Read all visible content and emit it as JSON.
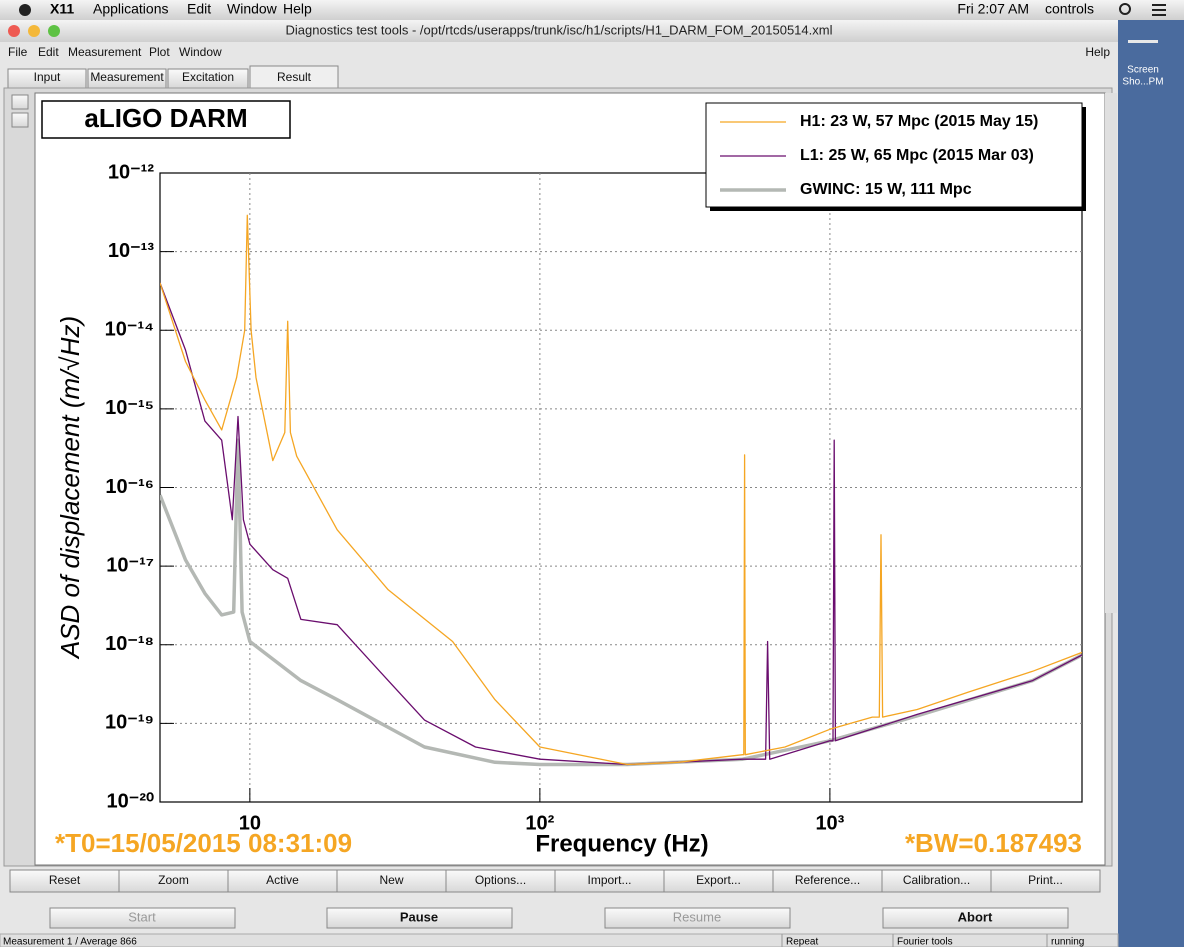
{
  "menubar": {
    "app": "X11",
    "menus": [
      "Applications",
      "Edit",
      "Window",
      "Help"
    ],
    "clock": "Fri 2:07 AM",
    "user": "controls"
  },
  "window": {
    "title": "Diagnostics test tools - /opt/rtcds/userapps/trunk/isc/h1/scripts/H1_DARM_FOM_20150514.xml",
    "menus": [
      "File",
      "Edit",
      "Measurement",
      "Plot",
      "Window"
    ],
    "help": "Help",
    "tabs": [
      "Input",
      "Measurement",
      "Excitation",
      "Result"
    ],
    "buttons": [
      "Reset",
      "Zoom",
      "Active",
      "New",
      "Options...",
      "Import...",
      "Export...",
      "Reference...",
      "Calibration...",
      "Print..."
    ],
    "controls": [
      "Start",
      "Pause",
      "Resume",
      "Abort"
    ],
    "status": [
      "Measurement 1 / Average 866",
      "Repeat",
      "Fourier tools",
      "running"
    ]
  },
  "desktop": {
    "icon_label": [
      "Screen",
      "Sho...PM"
    ]
  },
  "chart_data": {
    "type": "line",
    "title": "aLIGO DARM",
    "xlabel": "Frequency (Hz)",
    "ylabel": "ASD of displacement  (m/√Hz)",
    "annotations": [
      "*T0=15/05/2015 08:31:09",
      "*BW=0.187493"
    ],
    "xscale": "log",
    "yscale": "log",
    "grid": true,
    "legend": "upper right",
    "xlim": [
      4.9,
      7400
    ],
    "ylim": [
      1e-20,
      1e-12
    ],
    "xticks": [
      10,
      {
        "value": 100,
        "label": "10²"
      },
      {
        "value": 1000,
        "label": "10³"
      }
    ],
    "yticks": [
      {
        "value": 1e-20,
        "label": "10⁻²⁰"
      },
      {
        "value": 1e-19,
        "label": "10⁻¹⁹"
      },
      {
        "value": 1e-18,
        "label": "10⁻¹⁸"
      },
      {
        "value": 1e-17,
        "label": "10⁻¹⁷"
      },
      {
        "value": 1e-16,
        "label": "10⁻¹⁶"
      },
      {
        "value": 1e-15,
        "label": "10⁻¹⁵"
      },
      {
        "value": 1e-14,
        "label": "10⁻¹⁴"
      },
      {
        "value": 1e-13,
        "label": "10⁻¹³"
      },
      {
        "value": 1e-12,
        "label": "10⁻¹²"
      }
    ],
    "series": [
      {
        "name": "H1: 23 W, 57 Mpc (2015 May 15)",
        "color": "#f5a623",
        "linewidth": 1.3,
        "x": [
          4.9,
          6,
          7,
          8,
          9,
          9.6,
          9.8,
          10.1,
          10.5,
          12,
          13.2,
          13.5,
          13.8,
          14.5,
          20,
          30,
          50,
          70,
          100,
          200,
          300,
          500,
          505,
          508,
          511,
          700,
          1000,
          1400,
          1480,
          1500,
          1520,
          2000,
          3000,
          5000,
          7400
        ],
        "values": [
          4e-14,
          4e-15,
          1.3e-15,
          5.4e-16,
          2.5e-15,
          1e-14,
          2.9e-13,
          1e-14,
          2.5e-15,
          2.2e-16,
          5e-16,
          1.3e-14,
          5e-16,
          2.5e-16,
          2.9e-17,
          5e-18,
          1.1e-18,
          2e-19,
          5e-20,
          3e-20,
          3.2e-20,
          4e-20,
          4e-20,
          2.6e-16,
          4e-20,
          5e-20,
          8.4e-20,
          1.2e-19,
          1.2e-19,
          2.5e-17,
          1.2e-19,
          1.5e-19,
          2.5e-19,
          4.6e-19,
          8e-19
        ]
      },
      {
        "name": "L1: 25 W, 65 Mpc (2015 Mar 03)",
        "color": "#6a0d6e",
        "linewidth": 1.3,
        "x": [
          4.9,
          6,
          7,
          8,
          8.7,
          9.1,
          9.5,
          10,
          12,
          13.5,
          15,
          20,
          30,
          40,
          60,
          100,
          200,
          500,
          600,
          610,
          620,
          1000,
          1025,
          1035,
          1045,
          2000,
          5000,
          7400
        ],
        "values": [
          4e-14,
          5.6e-15,
          7e-16,
          4e-16,
          3.9e-17,
          8e-16,
          3.9e-17,
          1.9e-17,
          9e-18,
          7e-18,
          2.1e-18,
          1.8e-18,
          3.5e-19,
          1.1e-19,
          5e-20,
          3.5e-20,
          3e-20,
          3.5e-20,
          3.5e-20,
          1.1e-18,
          3.5e-20,
          6e-20,
          6e-20,
          4e-16,
          6e-20,
          1.3e-19,
          3.5e-19,
          7.4e-19
        ]
      },
      {
        "name": "GWINC: 15 W, 111 Mpc",
        "color": "#b4b8b4",
        "linewidth": 3.5,
        "x": [
          4.9,
          6,
          7,
          8,
          8.8,
          9.1,
          9.4,
          10,
          15,
          20,
          40,
          70,
          100,
          200,
          500,
          1000,
          2000,
          5000,
          7400
        ],
        "values": [
          8e-17,
          1.2e-17,
          4.5e-18,
          2.4e-18,
          2.6e-18,
          4e-16,
          2.6e-18,
          1.1e-18,
          3.5e-19,
          2e-19,
          5e-20,
          3.2e-20,
          3e-20,
          3e-20,
          3.5e-20,
          6e-20,
          1.25e-19,
          3.5e-19,
          7.4e-19
        ]
      }
    ]
  }
}
